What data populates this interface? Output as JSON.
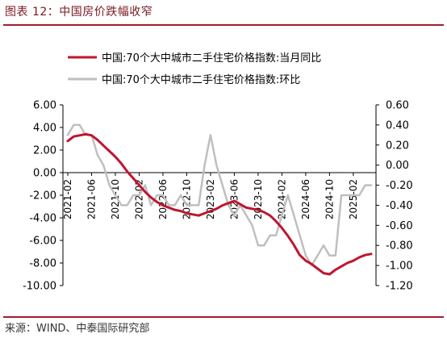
{
  "figure": {
    "title": "图表 12：中国房价跌幅收窄",
    "source": "来源：WIND、中泰国际研究部"
  },
  "chart_data": {
    "type": "line",
    "title": "",
    "legend_position": "top",
    "grid": false,
    "x_ticks": [
      "2021-02",
      "2021-06",
      "2021-10",
      "2022-02",
      "2022-06",
      "2022-10",
      "2023-02",
      "2023-06",
      "2023-10",
      "2024-02",
      "2024-06",
      "2024-10",
      "2025-02"
    ],
    "left_axis": {
      "ylim": [
        -10,
        6
      ],
      "ticks": [
        "6.00",
        "4.00",
        "2.00",
        "0.00",
        "-2.00",
        "-4.00",
        "-6.00",
        "-8.00",
        "-10.00"
      ]
    },
    "right_axis": {
      "ylim": [
        -1.2,
        0.6
      ],
      "ticks": [
        "0.60",
        "0.40",
        "0.20",
        "0.00",
        "-0.20",
        "-0.40",
        "-0.60",
        "-0.80",
        "-1.00",
        "-1.20"
      ]
    },
    "series": [
      {
        "name": "中国:70个大中城市二手住宅价格指数:当月同比",
        "axis": "left",
        "color": "#c0152f",
        "x": [
          "2021-02",
          "2021-03",
          "2021-04",
          "2021-05",
          "2021-06",
          "2021-07",
          "2021-08",
          "2021-09",
          "2021-10",
          "2021-11",
          "2021-12",
          "2022-01",
          "2022-02",
          "2022-03",
          "2022-04",
          "2022-05",
          "2022-06",
          "2022-07",
          "2022-08",
          "2022-09",
          "2022-10",
          "2022-11",
          "2022-12",
          "2023-01",
          "2023-02",
          "2023-03",
          "2023-04",
          "2023-05",
          "2023-06",
          "2023-07",
          "2023-08",
          "2023-09",
          "2023-10",
          "2023-11",
          "2023-12",
          "2024-01",
          "2024-02",
          "2024-03",
          "2024-04",
          "2024-05",
          "2024-06",
          "2024-07",
          "2024-08",
          "2024-09",
          "2024-10",
          "2024-11",
          "2024-12",
          "2025-01",
          "2025-02",
          "2025-03",
          "2025-04",
          "2025-05"
        ],
        "y": [
          2.8,
          3.2,
          3.3,
          3.4,
          3.3,
          2.9,
          2.4,
          1.9,
          1.4,
          0.8,
          0.1,
          -0.5,
          -1.1,
          -1.7,
          -2.2,
          -2.6,
          -2.9,
          -3.1,
          -3.3,
          -3.4,
          -3.6,
          -3.7,
          -3.8,
          -3.6,
          -3.4,
          -3.2,
          -2.9,
          -2.7,
          -2.5,
          -2.8,
          -3.1,
          -3.2,
          -3.3,
          -3.5,
          -3.8,
          -4.3,
          -4.9,
          -5.6,
          -6.4,
          -7.3,
          -7.8,
          -8.1,
          -8.5,
          -8.9,
          -9.0,
          -8.6,
          -8.3,
          -8.0,
          -7.8,
          -7.5,
          -7.3,
          -7.2
        ]
      },
      {
        "name": "中国:70个大中城市二手住宅价格指数:环比",
        "axis": "right",
        "color": "#bfbfbf",
        "x": [
          "2021-02",
          "2021-03",
          "2021-04",
          "2021-05",
          "2021-06",
          "2021-07",
          "2021-08",
          "2021-09",
          "2021-10",
          "2021-11",
          "2021-12",
          "2022-01",
          "2022-02",
          "2022-03",
          "2022-04",
          "2022-05",
          "2022-06",
          "2022-07",
          "2022-08",
          "2022-09",
          "2022-10",
          "2022-11",
          "2022-12",
          "2023-01",
          "2023-02",
          "2023-03",
          "2023-04",
          "2023-05",
          "2023-06",
          "2023-07",
          "2023-08",
          "2023-09",
          "2023-10",
          "2023-11",
          "2023-12",
          "2024-01",
          "2024-02",
          "2024-03",
          "2024-04",
          "2024-05",
          "2024-06",
          "2024-07",
          "2024-08",
          "2024-09",
          "2024-10",
          "2024-11",
          "2024-12",
          "2025-01",
          "2025-02",
          "2025-03",
          "2025-04",
          "2025-05"
        ],
        "y": [
          0.3,
          0.4,
          0.4,
          0.3,
          0.3,
          0.1,
          0.0,
          -0.2,
          -0.3,
          -0.4,
          -0.4,
          -0.3,
          -0.3,
          -0.2,
          -0.4,
          -0.3,
          -0.3,
          -0.4,
          -0.4,
          -0.3,
          -0.4,
          -0.4,
          -0.4,
          0.0,
          0.3,
          0.0,
          -0.2,
          -0.4,
          -0.5,
          -0.4,
          -0.5,
          -0.6,
          -0.8,
          -0.8,
          -0.7,
          -0.7,
          -0.5,
          -0.3,
          -0.5,
          -0.7,
          -0.9,
          -1.0,
          -0.9,
          -0.8,
          -0.9,
          -0.9,
          -0.3,
          -0.3,
          -0.3,
          -0.3,
          -0.2,
          -0.2
        ]
      }
    ]
  }
}
